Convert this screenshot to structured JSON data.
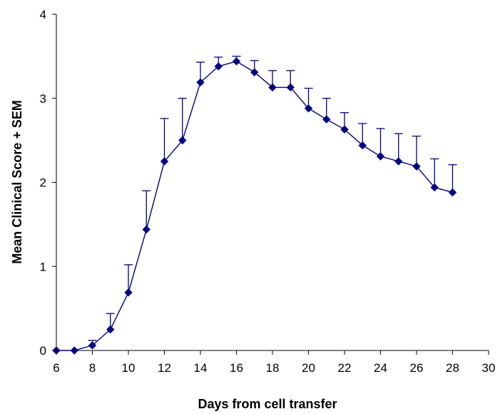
{
  "chart_data": {
    "type": "line",
    "title": "",
    "xlabel": "Days from cell transfer",
    "ylabel": "Mean Clinical Score + SEM",
    "xlim": [
      6,
      30
    ],
    "ylim": [
      0,
      4
    ],
    "xticks": [
      6,
      8,
      10,
      12,
      14,
      16,
      18,
      20,
      22,
      24,
      26,
      28,
      30
    ],
    "yticks": [
      0,
      1,
      2,
      3,
      4
    ],
    "grid": false,
    "legend": "none",
    "series": [
      {
        "color": "#000080",
        "marker": "diamond",
        "x": [
          6,
          7,
          8,
          9,
          10,
          11,
          12,
          13,
          14,
          15,
          16,
          17,
          18,
          19,
          20,
          21,
          22,
          23,
          24,
          25,
          26,
          27,
          28
        ],
        "y": [
          0,
          0,
          0.06,
          0.25,
          0.69,
          1.44,
          2.25,
          2.5,
          3.19,
          3.38,
          3.44,
          3.31,
          3.13,
          3.13,
          2.88,
          2.75,
          2.63,
          2.44,
          2.31,
          2.25,
          2.19,
          1.94,
          1.88
        ],
        "sem": [
          0,
          0,
          0.06,
          0.19,
          0.33,
          0.46,
          0.51,
          0.5,
          0.24,
          0.11,
          0.06,
          0.14,
          0.2,
          0.2,
          0.24,
          0.25,
          0.2,
          0.26,
          0.33,
          0.33,
          0.36,
          0.34,
          0.33
        ]
      }
    ]
  }
}
